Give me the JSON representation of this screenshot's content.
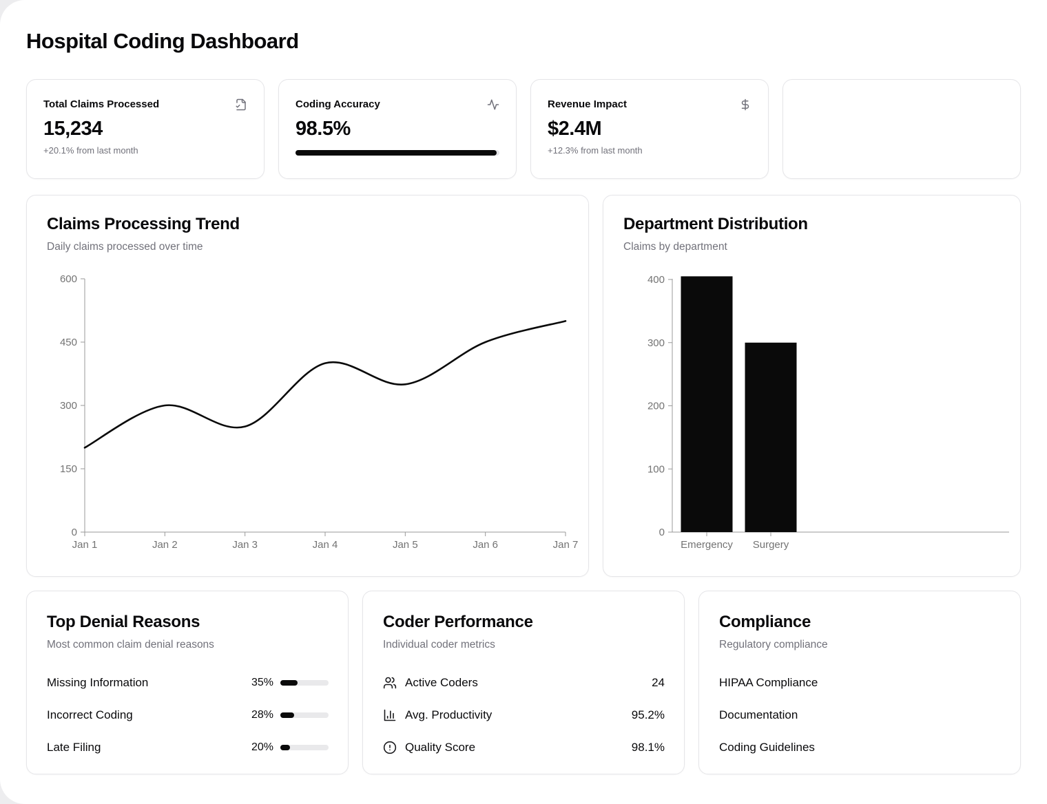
{
  "page": {
    "title": "Hospital Coding Dashboard"
  },
  "stat_cards": [
    {
      "label": "Total Claims Processed",
      "icon": "file-check-icon",
      "value": "15,234",
      "sub": "+20.1% from last month"
    },
    {
      "label": "Coding Accuracy",
      "icon": "activity-icon",
      "value": "98.5%",
      "progress_pct": 98.5
    },
    {
      "label": "Revenue Impact",
      "icon": "dollar-icon",
      "value": "$2.4M",
      "sub": "+12.3% from last month"
    }
  ],
  "chart_data": [
    {
      "type": "line",
      "title": "Claims Processing Trend",
      "subtitle": "Daily claims processed over time",
      "x": [
        "Jan 1",
        "Jan 2",
        "Jan 3",
        "Jan 4",
        "Jan 5",
        "Jan 6",
        "Jan 7"
      ],
      "series": [
        {
          "name": "claims",
          "values": [
            200,
            300,
            250,
            400,
            350,
            450,
            500
          ]
        }
      ],
      "ylim": [
        0,
        600
      ],
      "yticks": [
        0,
        150,
        300,
        450,
        600
      ],
      "grid": false,
      "legend": false,
      "line_color": "#0a0a0a",
      "axis_color": "#999999"
    },
    {
      "type": "bar",
      "title": "Department Distribution",
      "subtitle": "Claims by department",
      "categories": [
        "Emergency",
        "Surgery"
      ],
      "values": [
        405,
        300
      ],
      "ylim": [
        0,
        405
      ],
      "yticks": [
        0,
        100,
        200,
        300,
        400
      ],
      "grid": false,
      "legend": false,
      "bar_color": "#0a0a0a",
      "axis_color": "#999999"
    }
  ],
  "denial_card": {
    "title": "Top Denial Reasons",
    "subtitle": "Most common claim denial reasons",
    "items": [
      {
        "label": "Missing Information",
        "pct_label": "35%",
        "pct": 35
      },
      {
        "label": "Incorrect Coding",
        "pct_label": "28%",
        "pct": 28
      },
      {
        "label": "Late Filing",
        "pct_label": "20%",
        "pct": 20
      }
    ]
  },
  "coder_card": {
    "title": "Coder Performance",
    "subtitle": "Individual coder metrics",
    "rows": [
      {
        "icon": "users-icon",
        "label": "Active Coders",
        "value": "24"
      },
      {
        "icon": "bar-chart-icon",
        "label": "Avg. Productivity",
        "value": "95.2%"
      },
      {
        "icon": "alert-circle-icon",
        "label": "Quality Score",
        "value": "98.1%"
      }
    ]
  },
  "compliance_card": {
    "title": "Compliance",
    "subtitle": "Regulatory compliance",
    "rows": [
      {
        "label": "HIPAA Compliance"
      },
      {
        "label": "Documentation"
      },
      {
        "label": "Coding Guidelines"
      }
    ]
  }
}
